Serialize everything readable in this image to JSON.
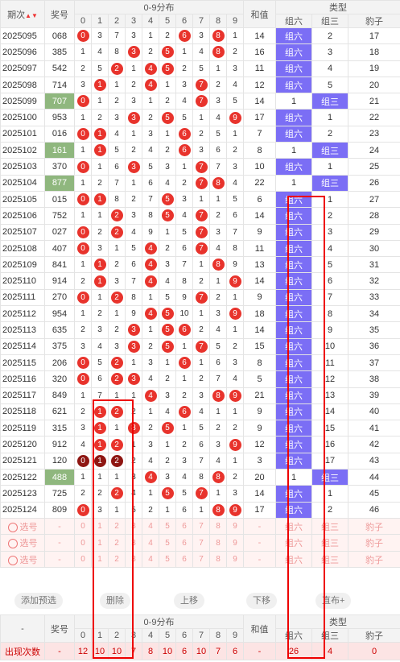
{
  "headers": {
    "period": "期次",
    "number": "奖号",
    "dist": "0-9分布",
    "sum": "和值",
    "type": "类型",
    "g6": "组六",
    "g3": "组三",
    "bz": "豹子"
  },
  "digits": [
    "0",
    "1",
    "2",
    "3",
    "4",
    "5",
    "6",
    "7",
    "8",
    "9"
  ],
  "rows": [
    {
      "p": "2025095",
      "n": "068",
      "hl": false,
      "d": [
        "B",
        "3",
        "7",
        "3",
        "1",
        "2",
        "B",
        "3",
        "B",
        "1"
      ],
      "s": "14",
      "t": [
        "组六",
        "2",
        "17"
      ],
      "h": "6"
    },
    {
      "p": "2025096",
      "n": "385",
      "hl": false,
      "d": [
        "1",
        "4",
        "8",
        "B",
        "2",
        "B",
        "1",
        "4",
        "B",
        "2"
      ],
      "s": "16",
      "t": [
        "组六",
        "3",
        "18"
      ],
      "h": "6"
    },
    {
      "p": "2025097",
      "n": "542",
      "hl": false,
      "d": [
        "2",
        "5",
        "B",
        "1",
        "B",
        "B",
        "2",
        "5",
        "1",
        "3"
      ],
      "s": "11",
      "t": [
        "组六",
        "4",
        "19"
      ],
      "h": "6"
    },
    {
      "p": "2025098",
      "n": "714",
      "hl": false,
      "d": [
        "3",
        "B",
        "1",
        "2",
        "B",
        "1",
        "3",
        "B",
        "2",
        "4"
      ],
      "s": "12",
      "t": [
        "组六",
        "5",
        "20"
      ],
      "h": "6"
    },
    {
      "p": "2025099",
      "n": "707",
      "hl": true,
      "d": [
        "B",
        "1",
        "2",
        "3",
        "1",
        "2",
        "4",
        "B",
        "3",
        "5"
      ],
      "s": "14",
      "t": [
        "1",
        "组三",
        "21"
      ],
      "h": "3"
    },
    {
      "p": "2025100",
      "n": "953",
      "hl": false,
      "d": [
        "1",
        "2",
        "3",
        "B",
        "2",
        "B",
        "5",
        "1",
        "4",
        "B"
      ],
      "s": "17",
      "t": [
        "组六",
        "1",
        "22"
      ],
      "h": "6"
    },
    {
      "p": "2025101",
      "n": "016",
      "hl": false,
      "d": [
        "B",
        "B",
        "4",
        "1",
        "3",
        "1",
        "B",
        "2",
        "5",
        "1"
      ],
      "s": "7",
      "t": [
        "组六",
        "2",
        "23"
      ],
      "h": "6"
    },
    {
      "p": "2025102",
      "n": "161",
      "hl": true,
      "d": [
        "1",
        "B",
        "5",
        "2",
        "4",
        "2",
        "B",
        "3",
        "6",
        "2"
      ],
      "s": "8",
      "t": [
        "1",
        "组三",
        "24"
      ],
      "h": "3"
    },
    {
      "p": "2025103",
      "n": "370",
      "hl": false,
      "d": [
        "B",
        "1",
        "6",
        "B",
        "5",
        "3",
        "1",
        "B",
        "7",
        "3"
      ],
      "s": "10",
      "t": [
        "组六",
        "1",
        "25"
      ],
      "h": "6"
    },
    {
      "p": "2025104",
      "n": "877",
      "hl": true,
      "d": [
        "1",
        "2",
        "7",
        "1",
        "6",
        "4",
        "2",
        "B",
        "B",
        "4"
      ],
      "s": "22",
      "t": [
        "1",
        "组三",
        "26"
      ],
      "h": "3"
    },
    {
      "p": "2025105",
      "n": "015",
      "hl": false,
      "d": [
        "B",
        "B",
        "8",
        "2",
        "7",
        "B",
        "3",
        "1",
        "1",
        "5"
      ],
      "s": "6",
      "t": [
        "组六",
        "1",
        "27"
      ],
      "h": "6"
    },
    {
      "p": "2025106",
      "n": "752",
      "hl": false,
      "d": [
        "1",
        "1",
        "B",
        "3",
        "8",
        "B",
        "4",
        "B",
        "2",
        "6"
      ],
      "s": "14",
      "t": [
        "组六",
        "2",
        "28"
      ],
      "h": "6"
    },
    {
      "p": "2025107",
      "n": "027",
      "hl": false,
      "d": [
        "B",
        "2",
        "B",
        "4",
        "9",
        "1",
        "5",
        "B",
        "3",
        "7"
      ],
      "s": "9",
      "t": [
        "组六",
        "3",
        "29"
      ],
      "h": "6"
    },
    {
      "p": "2025108",
      "n": "407",
      "hl": false,
      "d": [
        "B",
        "3",
        "1",
        "5",
        "B",
        "2",
        "6",
        "B",
        "4",
        "8"
      ],
      "s": "11",
      "t": [
        "组六",
        "4",
        "30"
      ],
      "h": "6"
    },
    {
      "p": "2025109",
      "n": "841",
      "hl": false,
      "d": [
        "1",
        "B",
        "2",
        "6",
        "B",
        "3",
        "7",
        "1",
        "B",
        "9"
      ],
      "s": "13",
      "t": [
        "组六",
        "5",
        "31"
      ],
      "h": "6"
    },
    {
      "p": "2025110",
      "n": "914",
      "hl": false,
      "d": [
        "2",
        "B",
        "3",
        "7",
        "B",
        "4",
        "8",
        "2",
        "1",
        "B"
      ],
      "s": "14",
      "t": [
        "组六",
        "6",
        "32"
      ],
      "h": "6"
    },
    {
      "p": "2025111",
      "n": "270",
      "hl": false,
      "d": [
        "B",
        "1",
        "B",
        "8",
        "1",
        "5",
        "9",
        "B",
        "2",
        "1"
      ],
      "s": "9",
      "t": [
        "组六",
        "7",
        "33"
      ],
      "h": "6"
    },
    {
      "p": "2025112",
      "n": "954",
      "hl": false,
      "d": [
        "1",
        "2",
        "1",
        "9",
        "B",
        "B",
        "10",
        "1",
        "3",
        "B"
      ],
      "s": "18",
      "t": [
        "组六",
        "8",
        "34"
      ],
      "h": "6"
    },
    {
      "p": "2025113",
      "n": "635",
      "hl": false,
      "d": [
        "2",
        "3",
        "2",
        "B",
        "1",
        "B",
        "B",
        "2",
        "4",
        "1"
      ],
      "s": "14",
      "t": [
        "组六",
        "9",
        "35"
      ],
      "h": "6"
    },
    {
      "p": "2025114",
      "n": "375",
      "hl": false,
      "d": [
        "3",
        "4",
        "3",
        "B",
        "2",
        "B",
        "1",
        "B",
        "5",
        "2"
      ],
      "s": "15",
      "t": [
        "组六",
        "10",
        "36"
      ],
      "h": "6"
    },
    {
      "p": "2025115",
      "n": "206",
      "hl": false,
      "d": [
        "B",
        "5",
        "B",
        "1",
        "3",
        "1",
        "B",
        "1",
        "6",
        "3"
      ],
      "s": "8",
      "t": [
        "组六",
        "11",
        "37"
      ],
      "h": "6"
    },
    {
      "p": "2025116",
      "n": "320",
      "hl": false,
      "d": [
        "B",
        "6",
        "B",
        "B",
        "4",
        "2",
        "1",
        "2",
        "7",
        "4"
      ],
      "s": "5",
      "t": [
        "组六",
        "12",
        "38"
      ],
      "h": "6"
    },
    {
      "p": "2025117",
      "n": "849",
      "hl": false,
      "d": [
        "1",
        "7",
        "1",
        "1",
        "B",
        "3",
        "2",
        "3",
        "B",
        "B"
      ],
      "s": "21",
      "t": [
        "组六",
        "13",
        "39"
      ],
      "h": "6"
    },
    {
      "p": "2025118",
      "n": "621",
      "hl": false,
      "d": [
        "2",
        "B",
        "B",
        "2",
        "1",
        "4",
        "B",
        "4",
        "1",
        "1"
      ],
      "s": "9",
      "t": [
        "组六",
        "14",
        "40"
      ],
      "h": "6"
    },
    {
      "p": "2025119",
      "n": "315",
      "hl": false,
      "d": [
        "3",
        "B",
        "1",
        "B",
        "2",
        "B",
        "1",
        "5",
        "2",
        "2"
      ],
      "s": "9",
      "t": [
        "组六",
        "15",
        "41"
      ],
      "h": "6"
    },
    {
      "p": "2025120",
      "n": "912",
      "hl": false,
      "d": [
        "4",
        "B",
        "B",
        "1",
        "3",
        "1",
        "2",
        "6",
        "3",
        "B"
      ],
      "s": "12",
      "t": [
        "组六",
        "16",
        "42"
      ],
      "h": "6"
    },
    {
      "p": "2025121",
      "n": "120",
      "hl": false,
      "d": [
        "D",
        "D",
        "D",
        "2",
        "4",
        "2",
        "3",
        "7",
        "4",
        "1"
      ],
      "s": "3",
      "t": [
        "组六",
        "17",
        "43"
      ],
      "h": "6"
    },
    {
      "p": "2025122",
      "n": "488",
      "hl": true,
      "d": [
        "1",
        "1",
        "1",
        "3",
        "B",
        "3",
        "4",
        "8",
        "B",
        "2"
      ],
      "s": "20",
      "t": [
        "1",
        "组三",
        "44"
      ],
      "h": "3"
    },
    {
      "p": "2025123",
      "n": "725",
      "hl": false,
      "d": [
        "2",
        "2",
        "B",
        "4",
        "1",
        "B",
        "5",
        "B",
        "1",
        "3"
      ],
      "s": "14",
      "t": [
        "组六",
        "1",
        "45"
      ],
      "h": "6"
    },
    {
      "p": "2025124",
      "n": "809",
      "hl": false,
      "d": [
        "B",
        "3",
        "1",
        "5",
        "2",
        "1",
        "6",
        "1",
        "B",
        "B"
      ],
      "s": "17",
      "t": [
        "组六",
        "2",
        "46"
      ],
      "h": "6"
    }
  ],
  "select_rows": [
    {
      "label": "选号",
      "dash": "-",
      "d": [
        "0",
        "1",
        "2",
        "3",
        "4",
        "5",
        "6",
        "7",
        "8",
        "9"
      ],
      "s": "-",
      "t": [
        "组六",
        "组三",
        "豹子"
      ]
    },
    {
      "label": "选号",
      "dash": "-",
      "d": [
        "0",
        "1",
        "2",
        "3",
        "4",
        "5",
        "6",
        "7",
        "8",
        "9"
      ],
      "s": "-",
      "t": [
        "组六",
        "组三",
        "豹子"
      ]
    },
    {
      "label": "选号",
      "dash": "-",
      "d": [
        "0",
        "1",
        "2",
        "3",
        "4",
        "5",
        "6",
        "7",
        "8",
        "9"
      ],
      "s": "-",
      "t": [
        "组六",
        "组三",
        "豹子"
      ]
    }
  ],
  "actions": {
    "add": "添加预选",
    "del": "删除",
    "up": "上移",
    "down": "下移",
    "more": "直布+"
  },
  "footer": {
    "dash": "-",
    "label": "出现次数",
    "counts": [
      "12",
      "10",
      "10",
      "7",
      "8",
      "10",
      "6",
      "10",
      "7",
      "6"
    ],
    "sum": "-",
    "types": [
      "26",
      "4",
      "0"
    ]
  }
}
